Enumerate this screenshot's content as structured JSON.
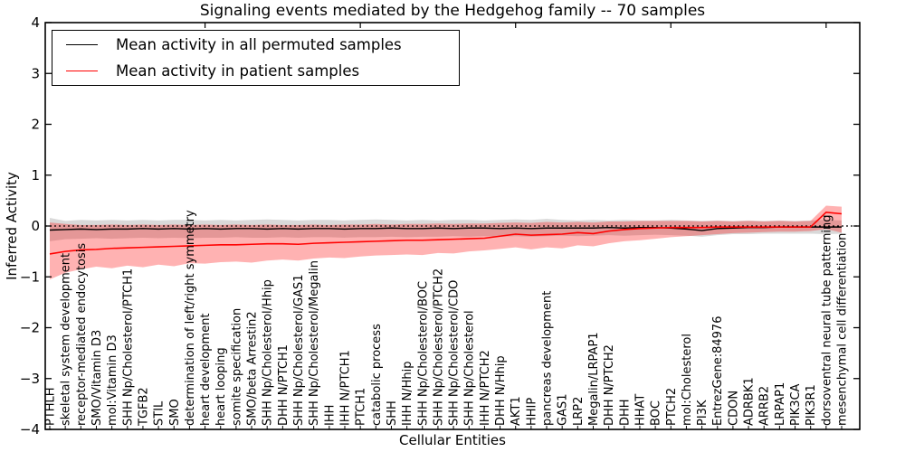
{
  "chart_data": {
    "type": "line",
    "title": "Signaling events mediated by the Hedgehog family -- 70 samples",
    "xlabel": "Cellular Entities",
    "ylabel": "Inferred Activity",
    "ylim": [
      -4,
      4
    ],
    "yticks": [
      4,
      3,
      2,
      1,
      0,
      -1,
      -2,
      -3,
      -4
    ],
    "grid": false,
    "legend_position": "upper left",
    "reference_line": {
      "y": 0,
      "style": "dotted",
      "color": "#000000"
    },
    "categories": [
      "PTHLH",
      "skeletal system development",
      "receptor-mediated endocytosis",
      "SMO/Vitamin D3",
      "mol:Vitamin D3",
      "SHH Np/Cholesterol/PTCH1",
      "TGFB2",
      "STIL",
      "SMO",
      "determination of left/right symmetry",
      "heart development",
      "heart looping",
      "somite specification",
      "SMO/beta Arrestin2",
      "SHH Np/Cholesterol/Hhip",
      "DHH N/PTCH1",
      "SHH Np/Cholesterol/GAS1",
      "SHH Np/Cholesterol/Megalin",
      "IHH",
      "IHH N/PTCH1",
      "PTCH1",
      "catabolic process",
      "SHH",
      "IHH N/Hhip",
      "SHH Np/Cholesterol/BOC",
      "SHH Np/Cholesterol/PTCH2",
      "SHH Np/Cholesterol/CDO",
      "SHH Np/Cholesterol",
      "IHH N/PTCH2",
      "DHH N/Hhip",
      "AKT1",
      "HHIP",
      "pancreas development",
      "GAS1",
      "LRP2",
      "Megalin/LRPAP1",
      "DHH N/PTCH2",
      "DHH",
      "HHAT",
      "BOC",
      "PTCH2",
      "mol:Cholesterol",
      "PI3K",
      "EntrezGene:84976",
      "CDON",
      "ADRBK1",
      "ARRB2",
      "LRPAP1",
      "PIK3CA",
      "PIK3R1",
      "dorsoventral neural tube patterning",
      "mesenchymal cell differentiation"
    ],
    "series": [
      {
        "name": "Mean activity in all permuted samples",
        "color": "#000000",
        "band_color": "rgba(0,0,0,0.15)",
        "values": [
          -0.08,
          -0.07,
          -0.06,
          -0.07,
          -0.06,
          -0.06,
          -0.05,
          -0.06,
          -0.05,
          -0.06,
          -0.05,
          -0.06,
          -0.05,
          -0.05,
          -0.06,
          -0.05,
          -0.06,
          -0.05,
          -0.05,
          -0.06,
          -0.05,
          -0.05,
          -0.04,
          -0.05,
          -0.05,
          -0.04,
          -0.05,
          -0.04,
          -0.04,
          -0.05,
          -0.04,
          -0.05,
          -0.04,
          -0.04,
          -0.04,
          -0.04,
          -0.03,
          -0.04,
          -0.03,
          -0.03,
          -0.04,
          -0.06,
          -0.09,
          -0.05,
          -0.04,
          -0.03,
          -0.03,
          -0.02,
          -0.02,
          -0.02,
          -0.02,
          -0.02
        ],
        "band_upper": [
          0.16,
          0.1,
          0.12,
          0.11,
          0.12,
          0.11,
          0.12,
          0.11,
          0.12,
          0.12,
          0.11,
          0.12,
          0.11,
          0.12,
          0.13,
          0.12,
          0.11,
          0.12,
          0.12,
          0.11,
          0.12,
          0.13,
          0.12,
          0.11,
          0.12,
          0.11,
          0.12,
          0.12,
          0.11,
          0.12,
          0.13,
          0.12,
          0.14,
          0.12,
          0.11,
          0.12,
          0.11,
          0.12,
          0.11,
          0.11,
          0.12,
          0.11,
          0.1,
          0.11,
          0.1,
          0.11,
          0.1,
          0.11,
          0.1,
          0.11,
          0.12,
          0.11
        ],
        "band_lower": [
          -0.3,
          -0.26,
          -0.25,
          -0.24,
          -0.25,
          -0.24,
          -0.23,
          -0.24,
          -0.23,
          -0.24,
          -0.23,
          -0.23,
          -0.22,
          -0.23,
          -0.23,
          -0.22,
          -0.23,
          -0.22,
          -0.22,
          -0.23,
          -0.22,
          -0.22,
          -0.21,
          -0.22,
          -0.21,
          -0.21,
          -0.2,
          -0.21,
          -0.2,
          -0.21,
          -0.2,
          -0.21,
          -0.2,
          -0.19,
          -0.2,
          -0.19,
          -0.18,
          -0.19,
          -0.18,
          -0.17,
          -0.18,
          -0.19,
          -0.21,
          -0.18,
          -0.16,
          -0.16,
          -0.15,
          -0.15,
          -0.15,
          -0.15,
          -0.16,
          -0.15
        ]
      },
      {
        "name": "Mean activity in patient samples",
        "color": "#ff0000",
        "band_color": "rgba(255,0,0,0.30)",
        "values": [
          -0.55,
          -0.5,
          -0.47,
          -0.46,
          -0.44,
          -0.43,
          -0.42,
          -0.41,
          -0.4,
          -0.39,
          -0.38,
          -0.37,
          -0.37,
          -0.36,
          -0.35,
          -0.35,
          -0.36,
          -0.34,
          -0.33,
          -0.32,
          -0.31,
          -0.3,
          -0.29,
          -0.28,
          -0.28,
          -0.27,
          -0.26,
          -0.25,
          -0.24,
          -0.2,
          -0.16,
          -0.18,
          -0.17,
          -0.16,
          -0.13,
          -0.15,
          -0.1,
          -0.07,
          -0.05,
          -0.04,
          -0.03,
          -0.03,
          -0.03,
          -0.02,
          -0.02,
          -0.02,
          -0.02,
          -0.02,
          -0.02,
          -0.02,
          0.27,
          0.24
        ],
        "band_upper": [
          0.07,
          0.04,
          0.02,
          0.02,
          0.03,
          0.02,
          0.03,
          0.02,
          0.03,
          0.02,
          0.03,
          0.02,
          0.03,
          0.02,
          0.03,
          0.02,
          0.02,
          0.03,
          0.02,
          0.03,
          0.03,
          0.04,
          0.03,
          0.04,
          0.04,
          0.05,
          0.04,
          0.05,
          0.05,
          0.06,
          0.07,
          0.06,
          0.08,
          0.07,
          0.08,
          0.07,
          0.09,
          0.09,
          0.1,
          0.1,
          0.1,
          0.1,
          0.09,
          0.1,
          0.09,
          0.1,
          0.09,
          0.1,
          0.09,
          0.1,
          0.4,
          0.38
        ],
        "band_lower": [
          -1.05,
          -0.92,
          -0.85,
          -0.8,
          -0.83,
          -0.78,
          -0.81,
          -0.76,
          -0.79,
          -0.73,
          -0.74,
          -0.71,
          -0.7,
          -0.72,
          -0.68,
          -0.66,
          -0.68,
          -0.64,
          -0.62,
          -0.63,
          -0.6,
          -0.58,
          -0.57,
          -0.56,
          -0.57,
          -0.53,
          -0.54,
          -0.5,
          -0.48,
          -0.45,
          -0.42,
          -0.46,
          -0.42,
          -0.44,
          -0.38,
          -0.4,
          -0.34,
          -0.3,
          -0.28,
          -0.25,
          -0.22,
          -0.2,
          -0.18,
          -0.16,
          -0.14,
          -0.13,
          -0.12,
          -0.11,
          -0.11,
          -0.1,
          -0.06,
          -0.13
        ]
      }
    ]
  }
}
